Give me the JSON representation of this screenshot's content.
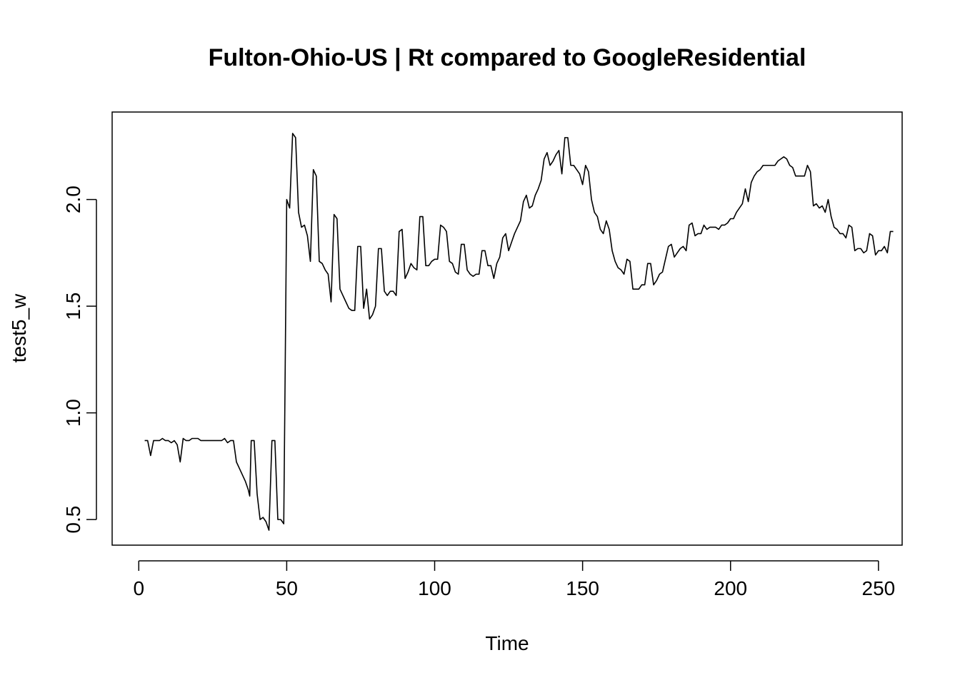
{
  "chart_data": {
    "type": "line",
    "title": "Fulton-Ohio-US | Rt compared to GoogleResidential",
    "xlabel": "Time",
    "ylabel": "test5_w",
    "xlim": [
      -9,
      258
    ],
    "ylim": [
      0.38,
      2.41
    ],
    "xticks": [
      0,
      50,
      100,
      150,
      200,
      250
    ],
    "yticks": [
      0.5,
      1.0,
      1.5,
      2.0
    ],
    "xtick_labels": [
      "0",
      "50",
      "100",
      "150",
      "200",
      "250"
    ],
    "ytick_labels": [
      "0.5",
      "1.0",
      "1.5",
      "2.0"
    ],
    "grid": false,
    "legend": "none",
    "series": [
      {
        "color": "#000000",
        "points": [
          [
            2,
            0.87
          ],
          [
            3,
            0.87
          ],
          [
            4,
            0.8
          ],
          [
            5,
            0.87
          ],
          [
            6,
            0.87
          ],
          [
            7,
            0.87
          ],
          [
            8,
            0.88
          ],
          [
            9,
            0.87
          ],
          [
            10,
            0.87
          ],
          [
            11,
            0.86
          ],
          [
            12,
            0.87
          ],
          [
            13,
            0.85
          ],
          [
            14,
            0.77
          ],
          [
            15,
            0.88
          ],
          [
            16,
            0.87
          ],
          [
            17,
            0.87
          ],
          [
            18,
            0.88
          ],
          [
            19,
            0.88
          ],
          [
            20,
            0.88
          ],
          [
            21,
            0.87
          ],
          [
            22,
            0.87
          ],
          [
            23,
            0.87
          ],
          [
            24,
            0.87
          ],
          [
            25,
            0.87
          ],
          [
            26,
            0.87
          ],
          [
            27,
            0.87
          ],
          [
            28,
            0.87
          ],
          [
            29,
            0.88
          ],
          [
            30,
            0.86
          ],
          [
            31,
            0.87
          ],
          [
            32,
            0.87
          ],
          [
            33,
            0.77
          ],
          [
            34,
            0.74
          ],
          [
            35,
            0.71
          ],
          [
            36,
            0.68
          ],
          [
            37,
            0.64
          ],
          [
            37.5,
            0.61
          ],
          [
            38,
            0.87
          ],
          [
            39,
            0.87
          ],
          [
            40,
            0.62
          ],
          [
            41,
            0.5
          ],
          [
            42,
            0.51
          ],
          [
            43,
            0.49
          ],
          [
            44,
            0.45
          ],
          [
            45,
            0.87
          ],
          [
            46,
            0.87
          ],
          [
            47,
            0.5
          ],
          [
            48,
            0.5
          ],
          [
            49,
            0.48
          ],
          [
            49.5,
            1.23
          ],
          [
            50,
            2.0
          ],
          [
            51,
            1.96
          ],
          [
            52,
            2.31
          ],
          [
            53,
            2.29
          ],
          [
            54,
            1.94
          ],
          [
            55,
            1.87
          ],
          [
            56,
            1.88
          ],
          [
            57,
            1.83
          ],
          [
            58,
            1.71
          ],
          [
            59,
            2.14
          ],
          [
            60,
            2.11
          ],
          [
            61,
            1.71
          ],
          [
            62,
            1.7
          ],
          [
            63,
            1.67
          ],
          [
            64,
            1.65
          ],
          [
            65,
            1.52
          ],
          [
            66,
            1.93
          ],
          [
            67,
            1.91
          ],
          [
            68,
            1.58
          ],
          [
            69,
            1.55
          ],
          [
            70,
            1.52
          ],
          [
            71,
            1.49
          ],
          [
            72,
            1.48
          ],
          [
            73,
            1.48
          ],
          [
            74,
            1.78
          ],
          [
            75,
            1.78
          ],
          [
            76,
            1.49
          ],
          [
            77,
            1.58
          ],
          [
            78,
            1.44
          ],
          [
            79,
            1.46
          ],
          [
            80,
            1.5
          ],
          [
            81,
            1.77
          ],
          [
            82,
            1.77
          ],
          [
            83,
            1.57
          ],
          [
            84,
            1.55
          ],
          [
            85,
            1.57
          ],
          [
            86,
            1.57
          ],
          [
            87,
            1.55
          ],
          [
            88,
            1.85
          ],
          [
            89,
            1.86
          ],
          [
            90,
            1.63
          ],
          [
            91,
            1.66
          ],
          [
            92,
            1.7
          ],
          [
            93,
            1.68
          ],
          [
            94,
            1.67
          ],
          [
            95,
            1.92
          ],
          [
            96,
            1.92
          ],
          [
            97,
            1.69
          ],
          [
            98,
            1.69
          ],
          [
            99,
            1.71
          ],
          [
            100,
            1.72
          ],
          [
            101,
            1.72
          ],
          [
            102,
            1.88
          ],
          [
            103,
            1.87
          ],
          [
            104,
            1.85
          ],
          [
            105,
            1.71
          ],
          [
            106,
            1.7
          ],
          [
            107,
            1.66
          ],
          [
            108,
            1.65
          ],
          [
            109,
            1.79
          ],
          [
            110,
            1.79
          ],
          [
            111,
            1.67
          ],
          [
            112,
            1.65
          ],
          [
            113,
            1.64
          ],
          [
            114,
            1.65
          ],
          [
            115,
            1.65
          ],
          [
            116,
            1.76
          ],
          [
            117,
            1.76
          ],
          [
            118,
            1.69
          ],
          [
            119,
            1.69
          ],
          [
            120,
            1.63
          ],
          [
            121,
            1.7
          ],
          [
            122,
            1.73
          ],
          [
            123,
            1.82
          ],
          [
            124,
            1.84
          ],
          [
            125,
            1.76
          ],
          [
            126,
            1.8
          ],
          [
            127,
            1.84
          ],
          [
            128,
            1.87
          ],
          [
            129,
            1.9
          ],
          [
            130,
            1.99
          ],
          [
            131,
            2.02
          ],
          [
            132,
            1.96
          ],
          [
            133,
            1.97
          ],
          [
            134,
            2.02
          ],
          [
            135,
            2.05
          ],
          [
            136,
            2.09
          ],
          [
            137,
            2.19
          ],
          [
            138,
            2.22
          ],
          [
            139,
            2.16
          ],
          [
            140,
            2.18
          ],
          [
            141,
            2.21
          ],
          [
            142,
            2.23
          ],
          [
            143,
            2.12
          ],
          [
            144,
            2.29
          ],
          [
            145,
            2.29
          ],
          [
            146,
            2.16
          ],
          [
            147,
            2.16
          ],
          [
            148,
            2.14
          ],
          [
            149,
            2.12
          ],
          [
            150,
            2.07
          ],
          [
            151,
            2.16
          ],
          [
            152,
            2.13
          ],
          [
            153,
            2.0
          ],
          [
            154,
            1.94
          ],
          [
            155,
            1.92
          ],
          [
            156,
            1.86
          ],
          [
            157,
            1.84
          ],
          [
            158,
            1.9
          ],
          [
            159,
            1.86
          ],
          [
            160,
            1.76
          ],
          [
            161,
            1.71
          ],
          [
            162,
            1.68
          ],
          [
            163,
            1.67
          ],
          [
            164,
            1.65
          ],
          [
            165,
            1.72
          ],
          [
            166,
            1.71
          ],
          [
            167,
            1.58
          ],
          [
            168,
            1.58
          ],
          [
            169,
            1.58
          ],
          [
            170,
            1.6
          ],
          [
            171,
            1.6
          ],
          [
            172,
            1.7
          ],
          [
            173,
            1.7
          ],
          [
            174,
            1.6
          ],
          [
            175,
            1.62
          ],
          [
            176,
            1.65
          ],
          [
            177,
            1.66
          ],
          [
            178,
            1.72
          ],
          [
            179,
            1.78
          ],
          [
            180,
            1.79
          ],
          [
            181,
            1.73
          ],
          [
            182,
            1.75
          ],
          [
            183,
            1.77
          ],
          [
            184,
            1.78
          ],
          [
            185,
            1.76
          ],
          [
            186,
            1.88
          ],
          [
            187,
            1.89
          ],
          [
            188,
            1.83
          ],
          [
            189,
            1.84
          ],
          [
            190,
            1.84
          ],
          [
            191,
            1.88
          ],
          [
            192,
            1.86
          ],
          [
            193,
            1.87
          ],
          [
            194,
            1.87
          ],
          [
            195,
            1.87
          ],
          [
            196,
            1.86
          ],
          [
            197,
            1.88
          ],
          [
            198,
            1.88
          ],
          [
            199,
            1.89
          ],
          [
            200,
            1.91
          ],
          [
            201,
            1.91
          ],
          [
            202,
            1.94
          ],
          [
            203,
            1.96
          ],
          [
            204,
            1.98
          ],
          [
            205,
            2.05
          ],
          [
            206,
            1.99
          ],
          [
            207,
            2.08
          ],
          [
            208,
            2.11
          ],
          [
            209,
            2.13
          ],
          [
            210,
            2.14
          ],
          [
            211,
            2.16
          ],
          [
            212,
            2.16
          ],
          [
            213,
            2.16
          ],
          [
            214,
            2.16
          ],
          [
            215,
            2.16
          ],
          [
            216,
            2.18
          ],
          [
            217,
            2.19
          ],
          [
            218,
            2.2
          ],
          [
            219,
            2.19
          ],
          [
            220,
            2.16
          ],
          [
            221,
            2.15
          ],
          [
            222,
            2.11
          ],
          [
            223,
            2.11
          ],
          [
            224,
            2.11
          ],
          [
            225,
            2.11
          ],
          [
            226,
            2.16
          ],
          [
            227,
            2.13
          ],
          [
            228,
            1.97
          ],
          [
            229,
            1.98
          ],
          [
            230,
            1.96
          ],
          [
            231,
            1.97
          ],
          [
            232,
            1.94
          ],
          [
            233,
            2.0
          ],
          [
            234,
            1.92
          ],
          [
            235,
            1.87
          ],
          [
            236,
            1.86
          ],
          [
            237,
            1.84
          ],
          [
            238,
            1.84
          ],
          [
            239,
            1.82
          ],
          [
            240,
            1.88
          ],
          [
            241,
            1.87
          ],
          [
            242,
            1.76
          ],
          [
            243,
            1.77
          ],
          [
            244,
            1.77
          ],
          [
            245,
            1.75
          ],
          [
            246,
            1.76
          ],
          [
            247,
            1.84
          ],
          [
            248,
            1.83
          ],
          [
            249,
            1.74
          ],
          [
            250,
            1.76
          ],
          [
            251,
            1.76
          ],
          [
            252,
            1.78
          ],
          [
            253,
            1.75
          ],
          [
            254,
            1.85
          ],
          [
            255,
            1.85
          ]
        ]
      }
    ]
  }
}
